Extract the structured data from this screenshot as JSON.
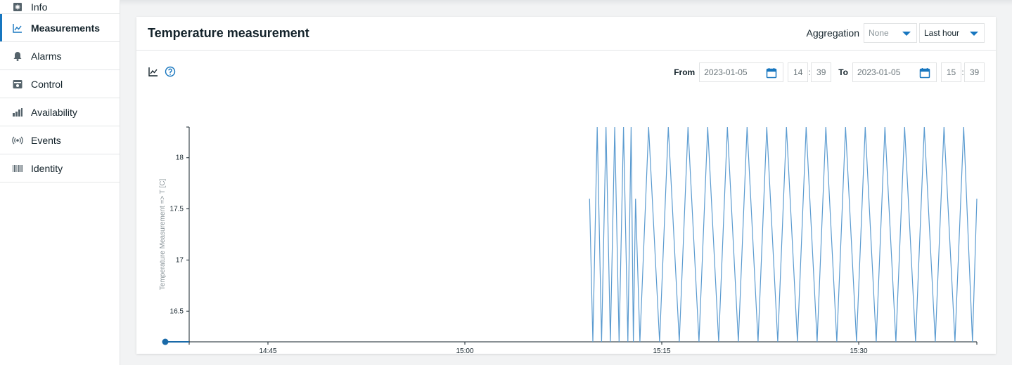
{
  "sidebar": {
    "items": [
      {
        "label": "Info",
        "icon": "info-icon"
      },
      {
        "label": "Measurements",
        "icon": "chart-line-icon",
        "active": true
      },
      {
        "label": "Alarms",
        "icon": "bell-icon"
      },
      {
        "label": "Control",
        "icon": "control-icon"
      },
      {
        "label": "Availability",
        "icon": "bar-chart-icon"
      },
      {
        "label": "Events",
        "icon": "broadcast-icon"
      },
      {
        "label": "Identity",
        "icon": "barcode-icon"
      }
    ]
  },
  "card": {
    "title": "Temperature measurement",
    "aggregation_label": "Aggregation",
    "aggregation_value": "None",
    "range_value": "Last hour",
    "from_label": "From",
    "from_date": "2023-01-05",
    "from_hour": "14",
    "from_minute": "39",
    "to_label": "To",
    "to_date": "2023-01-05",
    "to_hour": "15",
    "to_minute": "39"
  },
  "colors": {
    "accent": "#1776bf",
    "series": "#5b9bd0",
    "text": "#14232b"
  },
  "chart_data": {
    "type": "line",
    "ylabel": "Temperature Measurement => T [C]",
    "xlabel": "",
    "x_ticks": [
      "14:45",
      "15:00",
      "15:15",
      "15:30"
    ],
    "y_ticks": [
      "16.5",
      "17",
      "17.5",
      "18"
    ],
    "xlim": [
      "14:39",
      "15:39"
    ],
    "ylim": [
      16.2,
      18.3
    ],
    "series": [
      {
        "points": [
          [
            "15:09:30",
            17.6
          ],
          [
            "15:09:45",
            16.2
          ],
          [
            "15:10:05",
            18.3
          ],
          [
            "15:10:25",
            16.2
          ],
          [
            "15:10:45",
            18.3
          ],
          [
            "15:11:05",
            16.2
          ],
          [
            "15:11:25",
            18.3
          ],
          [
            "15:11:45",
            16.2
          ],
          [
            "15:12:05",
            18.3
          ],
          [
            "15:12:25",
            16.2
          ],
          [
            "15:12:40",
            18.3
          ],
          [
            "15:12:50",
            16.2
          ],
          [
            "15:13:00",
            17.6
          ],
          [
            "15:13:20",
            16.2
          ],
          [
            "15:14:00",
            18.3
          ],
          [
            "15:14:50",
            16.2
          ],
          [
            "15:15:30",
            18.3
          ],
          [
            "15:16:20",
            16.2
          ],
          [
            "15:17:00",
            18.3
          ],
          [
            "15:17:50",
            16.2
          ],
          [
            "15:18:30",
            18.3
          ],
          [
            "15:19:20",
            16.2
          ],
          [
            "15:20:00",
            18.3
          ],
          [
            "15:20:50",
            16.2
          ],
          [
            "15:21:30",
            18.3
          ],
          [
            "15:22:20",
            16.2
          ],
          [
            "15:23:00",
            18.3
          ],
          [
            "15:23:50",
            16.2
          ],
          [
            "15:24:30",
            18.3
          ],
          [
            "15:25:20",
            16.2
          ],
          [
            "15:26:00",
            18.3
          ],
          [
            "15:26:50",
            16.2
          ],
          [
            "15:27:30",
            18.3
          ],
          [
            "15:28:20",
            16.2
          ],
          [
            "15:29:00",
            18.3
          ],
          [
            "15:29:50",
            16.2
          ],
          [
            "15:30:30",
            18.3
          ],
          [
            "15:31:20",
            16.2
          ],
          [
            "15:32:00",
            18.3
          ],
          [
            "15:32:50",
            16.2
          ],
          [
            "15:33:30",
            18.3
          ],
          [
            "15:34:20",
            16.2
          ],
          [
            "15:35:00",
            18.3
          ],
          [
            "15:35:50",
            16.2
          ],
          [
            "15:36:30",
            18.3
          ],
          [
            "15:37:20",
            16.2
          ],
          [
            "15:38:00",
            18.3
          ],
          [
            "15:38:40",
            16.2
          ],
          [
            "15:39:00",
            17.6
          ]
        ]
      }
    ],
    "marker": {
      "x": "14:39",
      "y": 16.2
    },
    "grid": false,
    "legend": "none"
  }
}
